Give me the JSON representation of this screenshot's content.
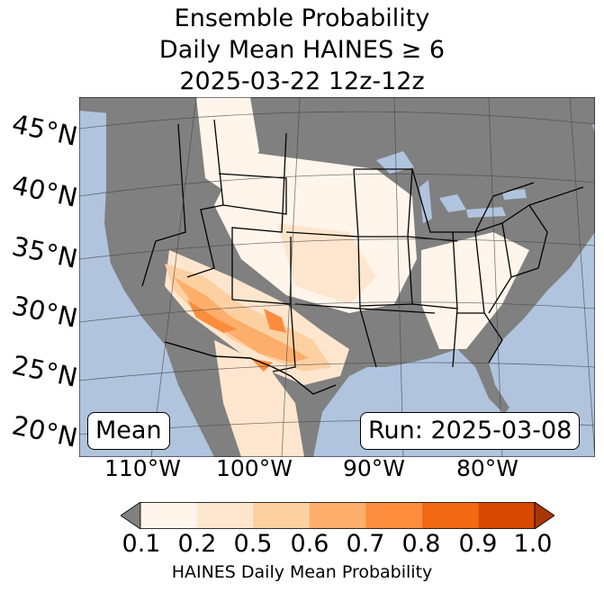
{
  "title": {
    "line1": "Ensemble Probability",
    "line2": "Daily Mean HAINES ≥ 6",
    "line3": "2025-03-22 12z-12z"
  },
  "map": {
    "lat_labels": [
      "45°N",
      "40°N",
      "35°N",
      "30°N",
      "25°N",
      "20°N"
    ],
    "lon_labels": [
      "110°W",
      "100°W",
      "90°W",
      "80°W"
    ],
    "ocean_color": "#b0c4de",
    "land_no_data_color": "#808080"
  },
  "mean_label": "Mean",
  "run_label": "Run: 2025-03-08",
  "colorbar": {
    "ticks": [
      "0.1",
      "0.2",
      "0.5",
      "0.6",
      "0.7",
      "0.8",
      "0.9",
      "1.0"
    ],
    "colors": [
      "#fff5eb",
      "#fee6ce",
      "#fdd0a2",
      "#fdae6b",
      "#fd8d3c",
      "#f16913",
      "#d94801"
    ],
    "under_color": "#808080",
    "over_color": "#a63603",
    "label": "HAINES Daily Mean Probability"
  }
}
